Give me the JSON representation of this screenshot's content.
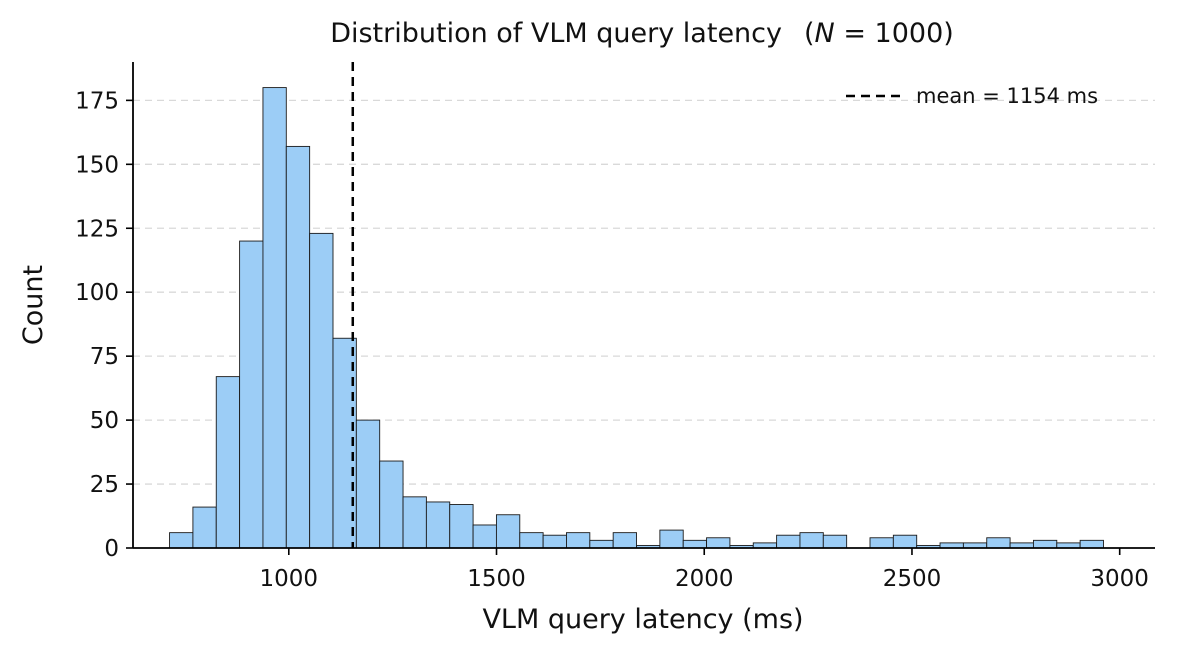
{
  "chart_data": {
    "type": "bar",
    "title": "Distribution of VLM query latency",
    "title_suffix_pre": "(",
    "title_suffix_var": "N",
    "title_suffix_post": " = 1000)",
    "xlabel": "VLM query latency (ms)",
    "ylabel": "Count",
    "xlim": [
      625,
      3085
    ],
    "ylim": [
      0,
      190
    ],
    "xticks": [
      1000,
      1500,
      2000,
      2500,
      3000
    ],
    "yticks": [
      0,
      25,
      50,
      75,
      100,
      125,
      150,
      175
    ],
    "grid": "y-dashed",
    "bar_color": "#9ccdf6",
    "bar_edge": "#1a1a1a",
    "bin_width": 56.2,
    "bin_start": 713,
    "counts": [
      6,
      16,
      67,
      120,
      180,
      157,
      123,
      82,
      50,
      34,
      20,
      18,
      17,
      9,
      13,
      6,
      5,
      6,
      3,
      6,
      1,
      7,
      3,
      4,
      1,
      2,
      5,
      6,
      5,
      0,
      4,
      5,
      1,
      2,
      2,
      4,
      2,
      3,
      2,
      3
    ],
    "mean": 1154,
    "mean_line_style": "dashed",
    "legend": {
      "position": "top-right",
      "label": "mean = 1154 ms"
    }
  }
}
